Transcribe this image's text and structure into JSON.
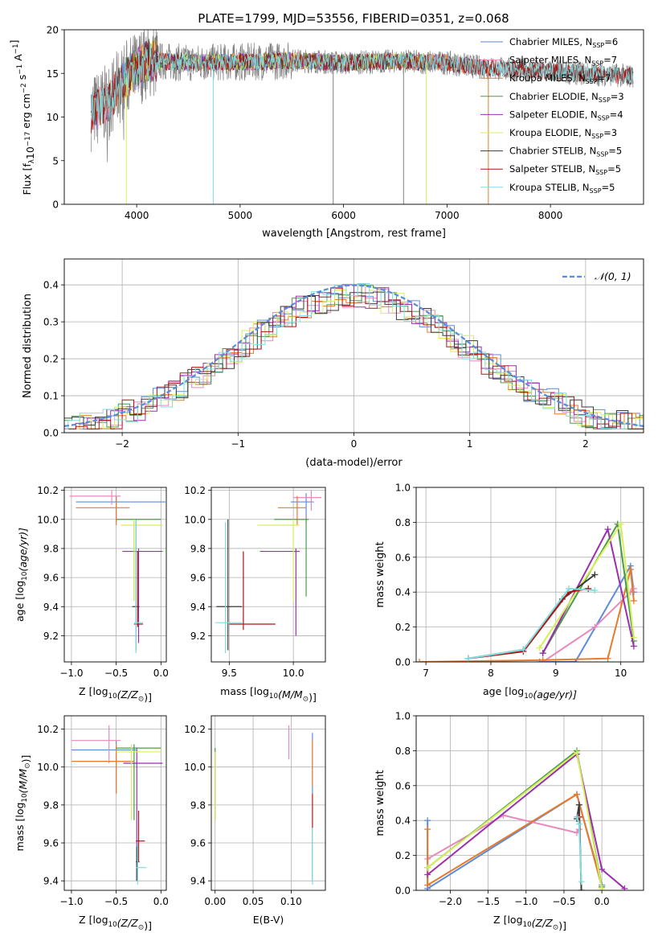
{
  "title": "PLATE=1799, MJD=53556, FIBERID=0351, z=0.068",
  "colors": {
    "Chabrier MILES": "#5b8bd9",
    "Salpeter MILES": "#e889bd",
    "Kroupa MILES": "#e77a2b",
    "Chabrier ELODIE": "#4b9a4b",
    "Salpeter ELODIE": "#9b2fae",
    "Kroupa ELODIE": "#d7ef5a",
    "Chabrier STELIB": "#3a3a3a",
    "Salpeter STELIB": "#b01515",
    "Kroupa STELIB": "#83dde0",
    "data": "#808080",
    "normal": "#5b8bd9"
  },
  "chart_data": [
    {
      "type": "line",
      "xlabel": "wavelength [Angstrom, rest frame]",
      "ylabel": "Flux [f",
      "ylabel_parts": [
        "Flux [f",
        "λ",
        "10",
        "−17",
        " erg cm",
        "−2",
        " s",
        "−1",
        " A",
        "−1",
        "]"
      ],
      "xlim": [
        3300,
        8900
      ],
      "ylim": [
        0,
        20
      ],
      "xticks": [
        4000,
        5000,
        6000,
        7000,
        8000
      ],
      "yticks": [
        0,
        5,
        10,
        15,
        20
      ],
      "grid": false,
      "legend_position": "right",
      "legend": [
        {
          "name": "Chabrier MILES, N",
          "nssp": "6"
        },
        {
          "name": "Salpeter MILES, N",
          "nssp": "7"
        },
        {
          "name": "Kroupa MILES, N",
          "nssp": "7"
        },
        {
          "name": "Chabrier ELODIE, N",
          "nssp": "3"
        },
        {
          "name": "Salpeter ELODIE, N",
          "nssp": "4"
        },
        {
          "name": "Kroupa ELODIE, N",
          "nssp": "3"
        },
        {
          "name": "Chabrier STELIB, N",
          "nssp": "5"
        },
        {
          "name": "Salpeter STELIB, N",
          "nssp": "5"
        },
        {
          "name": "Kroupa STELIB, N",
          "nssp": "5"
        }
      ],
      "legend_sub": "SSP",
      "spectrum_range": [
        3560,
        8800
      ],
      "continuum": [
        [
          3560,
          10.5
        ],
        [
          3700,
          11.5
        ],
        [
          3900,
          14.5
        ],
        [
          4100,
          16.5
        ],
        [
          4500,
          16.2
        ],
        [
          5000,
          16.3
        ],
        [
          5500,
          16.5
        ],
        [
          6000,
          16.2
        ],
        [
          6500,
          16.4
        ],
        [
          7000,
          16.2
        ],
        [
          7400,
          15.6
        ],
        [
          8000,
          15.2
        ],
        [
          8800,
          14.7
        ]
      ]
    },
    {
      "type": "histogram",
      "xlabel": "(data-model)/error",
      "ylabel": "Normed distribution",
      "xlim": [
        -2.5,
        2.5
      ],
      "ylim": [
        0,
        0.47
      ],
      "xticks": [
        -2,
        -1,
        0,
        1,
        2
      ],
      "xticklabels": [
        "−2",
        "−1",
        "0",
        "1",
        "2"
      ],
      "yticks": [
        0.0,
        0.1,
        0.2,
        0.3,
        0.4
      ],
      "yticklabels": [
        "0.0",
        "0.1",
        "0.2",
        "0.3",
        "0.4"
      ],
      "grid": true,
      "legend_position": "top-right",
      "curve_label": "𝒩(0, 1)",
      "bin_width": 0.1
    },
    {
      "type": "scatter",
      "xlabel": "Z [log",
      "xlabel_parts": [
        "Z [log",
        "10",
        "(Z/Z",
        "⊙",
        ")]"
      ],
      "ylabel": "age  [log",
      "ylabel_parts": [
        "age  [log",
        "10",
        "(age/yr)]"
      ],
      "xlim": [
        -1.08,
        0.06
      ],
      "ylim": [
        9.02,
        10.22
      ],
      "xticks": [
        -1.0,
        -0.5,
        0.0
      ],
      "xticklabels": [
        "−1.0",
        "−0.5",
        "0.0"
      ],
      "yticks": [
        9.2,
        9.4,
        9.6,
        9.8,
        10.0,
        10.2
      ],
      "grid": true,
      "points": [
        {
          "model": "Chabrier MILES",
          "x": -0.5,
          "y": 10.12,
          "ex": [
            -0.95,
            0.05
          ],
          "ey": [
            9.98,
            10.16
          ]
        },
        {
          "model": "Salpeter MILES",
          "x": -0.55,
          "y": 10.16,
          "ex": [
            -1.02,
            -0.45
          ],
          "ey": [
            10.1,
            10.2
          ]
        },
        {
          "model": "Kroupa MILES",
          "x": -0.5,
          "y": 10.08,
          "ex": [
            -0.95,
            -0.35
          ],
          "ey": [
            9.96,
            10.15
          ]
        },
        {
          "model": "Chabrier ELODIE",
          "x": -0.3,
          "y": 10.0,
          "ex": [
            -0.5,
            0.0
          ],
          "ey": [
            9.44,
            10.0
          ]
        },
        {
          "model": "Salpeter ELODIE",
          "x": -0.25,
          "y": 9.78,
          "ex": [
            -0.43,
            0.02
          ],
          "ey": [
            9.15,
            9.8
          ]
        },
        {
          "model": "Kroupa ELODIE",
          "x": -0.3,
          "y": 9.96,
          "ex": [
            -0.45,
            0.02
          ],
          "ey": [
            9.44,
            10.0
          ]
        },
        {
          "model": "Chabrier STELIB",
          "x": -0.28,
          "y": 9.4,
          "ex": [
            -0.32,
            -0.24
          ],
          "ey": [
            9.1,
            10.0
          ]
        },
        {
          "model": "Salpeter STELIB",
          "x": -0.26,
          "y": 9.28,
          "ex": [
            -0.3,
            -0.2
          ],
          "ey": [
            9.26,
            9.78
          ]
        },
        {
          "model": "Kroupa STELIB",
          "x": -0.28,
          "y": 9.29,
          "ex": [
            -0.3,
            -0.2
          ],
          "ey": [
            9.08,
            10.0
          ]
        }
      ]
    },
    {
      "type": "scatter",
      "xlabel": "mass [log",
      "xlabel_parts": [
        "mass [log",
        "10",
        "(M/M",
        "⊙",
        ")]"
      ],
      "xlim": [
        9.36,
        10.25
      ],
      "ylim": [
        9.02,
        10.22
      ],
      "xticks": [
        9.5,
        10.0
      ],
      "xticklabels": [
        "9.5",
        "10.0"
      ],
      "yticks": [
        9.2,
        9.4,
        9.6,
        9.8,
        10.0,
        10.2
      ],
      "grid": true,
      "points": [
        {
          "model": "Chabrier MILES",
          "x": 10.1,
          "y": 10.12,
          "ex": [
            9.98,
            10.16
          ],
          "ey": [
            9.98,
            10.18
          ]
        },
        {
          "model": "Salpeter MILES",
          "x": 10.14,
          "y": 10.15,
          "ex": [
            10.0,
            10.22
          ],
          "ey": [
            10.06,
            10.2
          ]
        },
        {
          "model": "Kroupa MILES",
          "x": 10.03,
          "y": 10.08,
          "ex": [
            9.88,
            10.1
          ],
          "ey": [
            9.96,
            10.16
          ]
        },
        {
          "model": "Chabrier ELODIE",
          "x": 10.1,
          "y": 10.0,
          "ex": [
            9.85,
            10.12
          ],
          "ey": [
            9.47,
            10.0
          ]
        },
        {
          "model": "Salpeter ELODIE",
          "x": 10.02,
          "y": 9.78,
          "ex": [
            9.74,
            10.05
          ],
          "ey": [
            9.2,
            9.8
          ]
        },
        {
          "model": "Kroupa ELODIE",
          "x": 10.0,
          "y": 9.96,
          "ex": [
            9.72,
            10.05
          ],
          "ey": [
            9.44,
            10.0
          ]
        },
        {
          "model": "Chabrier STELIB",
          "x": 9.49,
          "y": 9.4,
          "ex": [
            9.4,
            9.6
          ],
          "ey": [
            9.1,
            10.0
          ]
        },
        {
          "model": "Salpeter STELIB",
          "x": 9.61,
          "y": 9.28,
          "ex": [
            9.5,
            9.86
          ],
          "ey": [
            9.24,
            9.78
          ]
        },
        {
          "model": "Kroupa STELIB",
          "x": 9.47,
          "y": 9.29,
          "ex": [
            9.39,
            9.6
          ],
          "ey": [
            9.08,
            9.98
          ]
        }
      ]
    },
    {
      "type": "line",
      "xlabel": "age  [log",
      "xlabel_parts": [
        "age  [log",
        "10",
        "(age/yr)]"
      ],
      "ylabel": "mass weight",
      "xlim": [
        6.85,
        10.35
      ],
      "ylim": [
        0,
        1.0
      ],
      "xticks": [
        7,
        8,
        9,
        10
      ],
      "yticks": [
        0.0,
        0.2,
        0.4,
        0.6,
        0.8,
        1.0
      ],
      "grid": true,
      "series": [
        {
          "model": "Chabrier MILES",
          "x": [
            8.75,
            9.3,
            10.15,
            10.2
          ],
          "y": [
            0.0,
            0.0,
            0.55,
            0.4
          ]
        },
        {
          "model": "Salpeter MILES",
          "x": [
            8.8,
            9.6,
            10.15,
            10.2
          ],
          "y": [
            0.0,
            0.2,
            0.4,
            0.42
          ]
        },
        {
          "model": "Kroupa MILES",
          "x": [
            6.9,
            8.8,
            9.8,
            10.15,
            10.2
          ],
          "y": [
            0.0,
            0.01,
            0.02,
            0.53,
            0.35
          ]
        },
        {
          "model": "Chabrier ELODIE",
          "x": [
            8.8,
            9.95,
            10.2
          ],
          "y": [
            0.05,
            0.79,
            0.12
          ]
        },
        {
          "model": "Salpeter ELODIE",
          "x": [
            8.8,
            9.8,
            10.2
          ],
          "y": [
            0.05,
            0.76,
            0.09
          ]
        },
        {
          "model": "Kroupa ELODIE",
          "x": [
            8.75,
            10.0,
            10.2
          ],
          "y": [
            0.08,
            0.79,
            0.14
          ]
        },
        {
          "model": "Chabrier STELIB",
          "x": [
            7.65,
            8.5,
            9.1,
            9.6
          ],
          "y": [
            0.02,
            0.07,
            0.36,
            0.5
          ]
        },
        {
          "model": "Salpeter STELIB",
          "x": [
            7.65,
            8.5,
            9.2,
            9.5
          ],
          "y": [
            0.02,
            0.06,
            0.4,
            0.42
          ]
        },
        {
          "model": "Kroupa STELIB",
          "x": [
            7.65,
            8.5,
            9.2,
            9.6
          ],
          "y": [
            0.02,
            0.07,
            0.42,
            0.41
          ]
        }
      ]
    },
    {
      "type": "scatter",
      "xlabel": "Z [log",
      "xlabel_parts": [
        "Z [log",
        "10",
        "(Z/Z",
        "⊙",
        ")]"
      ],
      "ylabel": "mass [log",
      "ylabel_parts": [
        "mass [log",
        "10",
        "(M/M",
        "⊙",
        ")]"
      ],
      "xlim": [
        -1.08,
        0.06
      ],
      "ylim": [
        9.35,
        10.27
      ],
      "xticks": [
        -1.0,
        -0.5,
        0.0
      ],
      "xticklabels": [
        "−1.0",
        "−0.5",
        "0.0"
      ],
      "yticks": [
        9.4,
        9.6,
        9.8,
        10.0,
        10.2
      ],
      "grid": true,
      "points": [
        {
          "model": "Chabrier MILES",
          "x": -0.5,
          "y": 10.09,
          "ex": [
            -1.0,
            -0.28
          ],
          "ey": [
            9.86,
            10.14
          ]
        },
        {
          "model": "Salpeter MILES",
          "x": -0.58,
          "y": 10.14,
          "ex": [
            -1.0,
            -0.45
          ],
          "ey": [
            10.02,
            10.22
          ]
        },
        {
          "model": "Kroupa MILES",
          "x": -0.5,
          "y": 10.03,
          "ex": [
            -1.0,
            -0.3
          ],
          "ey": [
            9.86,
            10.12
          ]
        },
        {
          "model": "Chabrier ELODIE",
          "x": -0.3,
          "y": 10.1,
          "ex": [
            -0.5,
            0.0
          ],
          "ey": [
            9.72,
            10.12
          ]
        },
        {
          "model": "Salpeter ELODIE",
          "x": -0.27,
          "y": 10.02,
          "ex": [
            -0.42,
            0.02
          ],
          "ey": [
            9.4,
            10.1
          ]
        },
        {
          "model": "Kroupa ELODIE",
          "x": -0.33,
          "y": 10.08,
          "ex": [
            -0.5,
            0.0
          ],
          "ey": [
            9.72,
            10.12
          ]
        },
        {
          "model": "Chabrier STELIB",
          "x": -0.27,
          "y": 9.5,
          "ex": [
            -0.28,
            -0.24
          ],
          "ey": [
            9.4,
            9.58
          ]
        },
        {
          "model": "Salpeter STELIB",
          "x": -0.25,
          "y": 9.61,
          "ex": [
            -0.28,
            -0.18
          ],
          "ey": [
            9.5,
            9.77
          ]
        },
        {
          "model": "Kroupa STELIB",
          "x": -0.26,
          "y": 9.47,
          "ex": [
            -0.28,
            -0.16
          ],
          "ey": [
            9.38,
            9.6
          ]
        }
      ]
    },
    {
      "type": "scatter",
      "xlabel": "E(B-V)",
      "xlim": [
        -0.005,
        0.145
      ],
      "ylim": [
        9.35,
        10.27
      ],
      "xticks": [
        0.0,
        0.05,
        0.1
      ],
      "xticklabels": [
        "0.00",
        "0.05",
        "0.10"
      ],
      "yticks": [
        9.4,
        9.6,
        9.8,
        10.0,
        10.2
      ],
      "grid": true,
      "points": [
        {
          "model": "Chabrier ELODIE",
          "x": 0.0,
          "y": 9.9,
          "ey": [
            9.72,
            10.1
          ]
        },
        {
          "model": "Kroupa ELODIE",
          "x": 0.0,
          "y": 9.96,
          "ey": [
            9.72,
            10.08
          ]
        },
        {
          "model": "Salpeter MILES",
          "x": 0.097,
          "y": 10.14,
          "ey": [
            10.04,
            10.22
          ]
        },
        {
          "model": "Chabrier MILES",
          "x": 0.128,
          "y": 10.0,
          "ey": [
            9.86,
            10.18
          ]
        },
        {
          "model": "Kroupa MILES",
          "x": 0.128,
          "y": 10.03,
          "ey": [
            9.9,
            10.14
          ]
        },
        {
          "model": "Salpeter STELIB",
          "x": 0.128,
          "y": 9.6,
          "ey": [
            9.6,
            9.86
          ]
        },
        {
          "model": "Chabrier STELIB",
          "x": 0.128,
          "y": 9.5,
          "ey": [
            9.4,
            9.6
          ]
        },
        {
          "model": "Kroupa STELIB",
          "x": 0.128,
          "y": 9.47,
          "ey": [
            9.38,
            9.68
          ]
        }
      ]
    },
    {
      "type": "line",
      "xlabel": "Z [log",
      "xlabel_parts": [
        "Z [log",
        "10",
        "(Z/Z",
        "⊙",
        ")]"
      ],
      "ylabel": "mass weight",
      "xlim": [
        -2.45,
        0.55
      ],
      "ylim": [
        0,
        1.0
      ],
      "xticks": [
        -2.0,
        -1.5,
        -1.0,
        -0.5,
        0.0
      ],
      "xticklabels": [
        "−2.0",
        "−1.5",
        "−1.0",
        "−0.5",
        "0.0"
      ],
      "yticks": [
        0.0,
        0.2,
        0.4,
        0.6,
        0.8,
        1.0
      ],
      "grid": true,
      "series": [
        {
          "model": "Chabrier MILES",
          "x": [
            -2.3,
            -2.3,
            -0.33,
            0.0
          ],
          "y": [
            0.4,
            0.01,
            0.55,
            0.03
          ]
        },
        {
          "model": "Salpeter MILES",
          "x": [
            -2.3,
            -1.3,
            -0.33,
            -0.3
          ],
          "y": [
            0.18,
            0.43,
            0.33,
            0.35
          ]
        },
        {
          "model": "Kroupa MILES",
          "x": [
            -2.3,
            -2.3,
            -0.33,
            0.0
          ],
          "y": [
            0.35,
            0.03,
            0.55,
            0.02
          ]
        },
        {
          "model": "Chabrier ELODIE",
          "x": [
            -2.3,
            -0.33,
            0.0
          ],
          "y": [
            0.13,
            0.8,
            0.02
          ]
        },
        {
          "model": "Salpeter ELODIE",
          "x": [
            -2.3,
            -0.33,
            0.0,
            0.3
          ],
          "y": [
            0.09,
            0.78,
            0.12,
            0.01
          ]
        },
        {
          "model": "Kroupa ELODIE",
          "x": [
            -2.3,
            -0.33,
            0.0
          ],
          "y": [
            0.13,
            0.79,
            0.01
          ]
        },
        {
          "model": "Chabrier STELIB",
          "x": [
            -0.33,
            -0.3,
            -0.27
          ],
          "y": [
            0.41,
            0.49,
            0.0
          ]
        },
        {
          "model": "Salpeter STELIB",
          "x": [
            -0.33,
            -0.3
          ],
          "y": [
            0.42,
            0.42
          ]
        },
        {
          "model": "Kroupa STELIB",
          "x": [
            -0.33,
            -0.3,
            -0.27
          ],
          "y": [
            0.42,
            0.38,
            0.05
          ]
        }
      ]
    }
  ]
}
